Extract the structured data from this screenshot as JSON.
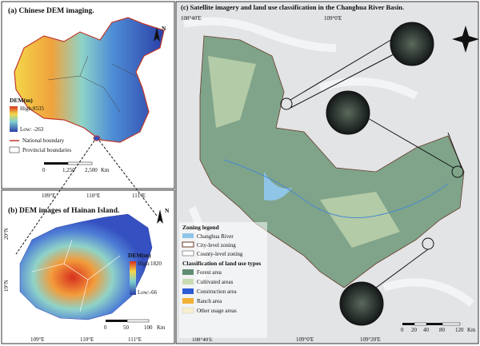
{
  "panel_a": {
    "title": "(a) Chinese DEM imaging.",
    "north": "N",
    "legend_title": "DEM(m)",
    "high": "High:8535",
    "low": "Low: -263",
    "national_boundary": "National boundary",
    "provincial_boundaries": "Provincial boundaries",
    "scale": [
      "0",
      "1,250",
      "2,500"
    ],
    "scale_unit": "Km"
  },
  "panel_b": {
    "title": "(b) DEM images of Hainan Island.",
    "top_coords": [
      "109°E",
      "110°E",
      "111°E"
    ],
    "bottom_coords": [
      "109°E",
      "110°E",
      "111°E"
    ],
    "left_coords": [
      "20°N",
      "19°N"
    ],
    "north": "N",
    "legend_title": "DEM(m)",
    "high": "High:1820",
    "low": "Low:-66",
    "scale": [
      "0",
      "50",
      "100"
    ],
    "scale_unit": "Km"
  },
  "panel_c": {
    "title": "(c) Satellite imagery and land use classification in the Changhua River Basin.",
    "top_coords": [
      "108°40'E",
      "109°0'E"
    ],
    "bottom_coords": [
      "108°40'E",
      "109°0'E",
      "109°20'E"
    ],
    "zoning_title": "Zoning legend",
    "zoning": [
      "Changhua River",
      "City-level zoning",
      "County-level zoning"
    ],
    "landuse_title": "Classification of land use types",
    "landuse": [
      "Forest area",
      "Cultivated areas",
      "Construction area",
      "Ranch area",
      "Other usage areas"
    ],
    "scale": [
      "0",
      "20",
      "40",
      "80",
      "120"
    ],
    "scale_unit": "Km"
  }
}
